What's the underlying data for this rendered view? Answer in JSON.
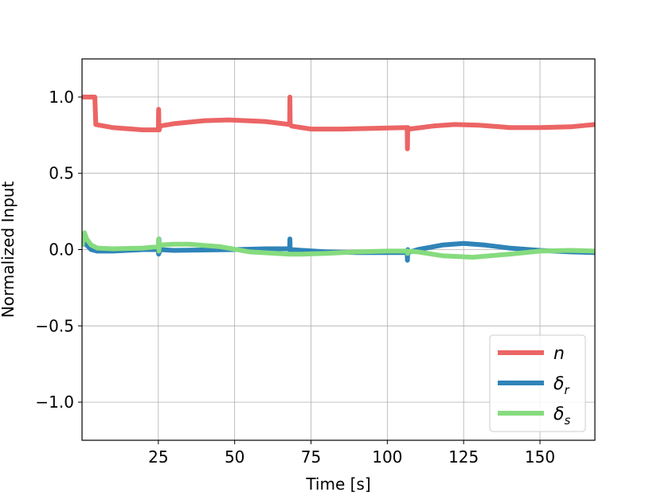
{
  "chart_data": {
    "type": "line",
    "title": "",
    "xlabel": "Time [s]",
    "ylabel": "Normalized Input",
    "xlim": [
      0,
      168
    ],
    "ylim": [
      -1.25,
      1.25
    ],
    "xticks": [
      25,
      50,
      75,
      100,
      125,
      150
    ],
    "xtick_labels": [
      "25",
      "50",
      "75",
      "100",
      "125",
      "150"
    ],
    "yticks": [
      1.0,
      0.5,
      0.0,
      -0.5,
      -1.0
    ],
    "ytick_labels": [
      "1.0",
      "0.5",
      "0.0",
      "−0.5",
      "−1.0"
    ],
    "grid": true,
    "legend": {
      "position": "lower-right"
    },
    "series": [
      {
        "name": "n",
        "legend_main": "n",
        "legend_sub": "",
        "color": "#ec6565",
        "x": [
          0,
          3,
          4.2,
          4.5,
          10,
          20,
          25,
          25.1,
          25.2,
          25.3,
          25.5,
          30,
          40,
          48,
          60,
          68,
          68.1,
          68.2,
          68.3,
          68.6,
          75,
          85,
          95,
          106.5,
          106.6,
          106.7,
          106.8,
          107.2,
          115,
          122,
          130,
          140,
          150,
          160,
          168
        ],
        "y": [
          1.0,
          1.0,
          1.0,
          0.82,
          0.8,
          0.785,
          0.785,
          0.92,
          0.785,
          0.785,
          0.81,
          0.825,
          0.845,
          0.85,
          0.84,
          0.82,
          1.0,
          0.82,
          0.82,
          0.81,
          0.79,
          0.79,
          0.795,
          0.8,
          0.66,
          0.8,
          0.8,
          0.79,
          0.81,
          0.82,
          0.815,
          0.8,
          0.8,
          0.805,
          0.82
        ]
      },
      {
        "name": "δr",
        "legend_main": "δ",
        "legend_sub": "r",
        "color": "#2f84b8",
        "x": [
          0,
          0.5,
          1,
          3,
          5,
          10,
          20,
          25,
          25.1,
          25.2,
          25.3,
          25.5,
          30,
          50,
          60,
          68,
          68.1,
          68.2,
          68.3,
          68.5,
          80,
          90,
          106.5,
          106.6,
          106.7,
          106.8,
          110,
          118,
          125,
          132,
          140,
          150,
          160,
          168
        ],
        "y": [
          0.03,
          0.05,
          0.04,
          0.0,
          -0.01,
          -0.01,
          0.0,
          0.0,
          -0.03,
          0.07,
          -0.02,
          0.0,
          -0.005,
          0.0,
          0.005,
          0.005,
          0.07,
          -0.01,
          0.005,
          0.0,
          -0.015,
          -0.02,
          -0.02,
          -0.07,
          0.0,
          -0.02,
          0.0,
          0.03,
          0.04,
          0.03,
          0.01,
          -0.005,
          -0.015,
          -0.02
        ]
      },
      {
        "name": "δs",
        "legend_main": "δ",
        "legend_sub": "s",
        "color": "#86db7e",
        "x": [
          0,
          0.8,
          1.5,
          3,
          5,
          10,
          20,
          25,
          25.1,
          25.2,
          25.3,
          25.5,
          30,
          35,
          45,
          55,
          68,
          72,
          80,
          90,
          100,
          106.5,
          106.6,
          106.7,
          110,
          118,
          128,
          140,
          150,
          160,
          168
        ],
        "y": [
          0.02,
          0.11,
          0.07,
          0.03,
          0.01,
          0.005,
          0.01,
          0.02,
          0.07,
          -0.01,
          0.04,
          0.03,
          0.035,
          0.035,
          0.02,
          -0.015,
          -0.03,
          -0.03,
          -0.025,
          -0.015,
          -0.01,
          -0.01,
          -0.025,
          -0.01,
          -0.015,
          -0.04,
          -0.05,
          -0.03,
          -0.01,
          -0.005,
          -0.01
        ]
      }
    ]
  }
}
